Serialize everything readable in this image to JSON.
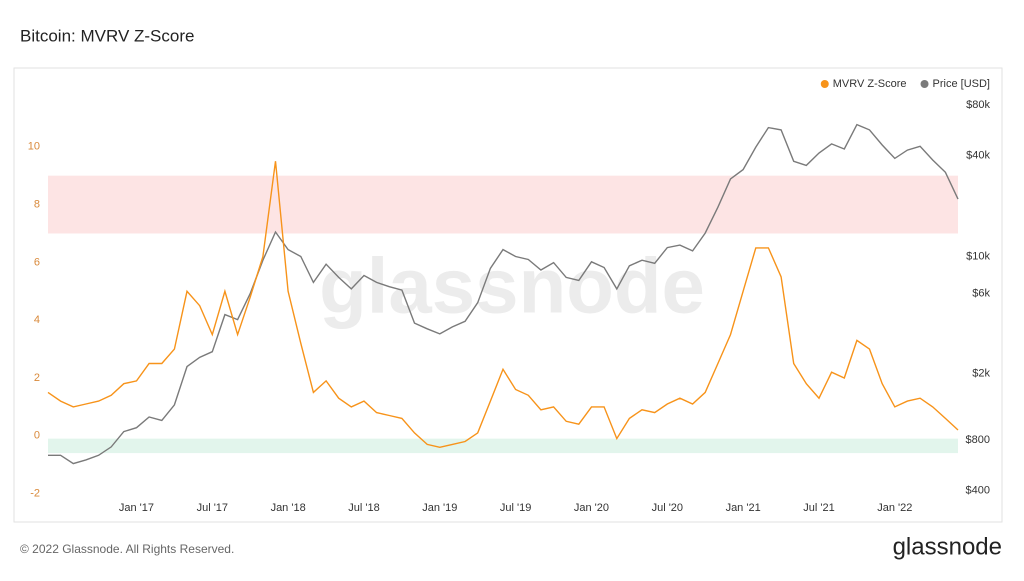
{
  "chart_data": {
    "type": "line",
    "title": "Bitcoin: MVRV Z-Score",
    "watermark": "glassnode",
    "x": [
      "2016-06",
      "2016-07",
      "2016-08",
      "2016-09",
      "2016-10",
      "2016-11",
      "2016-12",
      "2017-01",
      "2017-02",
      "2017-03",
      "2017-04",
      "2017-05",
      "2017-06",
      "2017-07",
      "2017-08",
      "2017-09",
      "2017-10",
      "2017-11",
      "2017-12",
      "2018-01",
      "2018-02",
      "2018-03",
      "2018-04",
      "2018-05",
      "2018-06",
      "2018-07",
      "2018-08",
      "2018-09",
      "2018-10",
      "2018-11",
      "2018-12",
      "2019-01",
      "2019-02",
      "2019-03",
      "2019-04",
      "2019-05",
      "2019-06",
      "2019-07",
      "2019-08",
      "2019-09",
      "2019-10",
      "2019-11",
      "2019-12",
      "2020-01",
      "2020-02",
      "2020-03",
      "2020-04",
      "2020-05",
      "2020-06",
      "2020-07",
      "2020-08",
      "2020-09",
      "2020-10",
      "2020-11",
      "2020-12",
      "2021-01",
      "2021-02",
      "2021-03",
      "2021-04",
      "2021-05",
      "2021-06",
      "2021-07",
      "2021-08",
      "2021-09",
      "2021-10",
      "2021-11",
      "2021-12",
      "2022-01",
      "2022-02",
      "2022-03",
      "2022-04",
      "2022-05",
      "2022-06"
    ],
    "xlim": [
      "2016-06",
      "2022-06"
    ],
    "xticks": [
      {
        "value": "2017-01",
        "label": "Jan '17"
      },
      {
        "value": "2017-07",
        "label": "Jul '17"
      },
      {
        "value": "2018-01",
        "label": "Jan '18"
      },
      {
        "value": "2018-07",
        "label": "Jul '18"
      },
      {
        "value": "2019-01",
        "label": "Jan '19"
      },
      {
        "value": "2019-07",
        "label": "Jul '19"
      },
      {
        "value": "2020-01",
        "label": "Jan '20"
      },
      {
        "value": "2020-07",
        "label": "Jul '20"
      },
      {
        "value": "2021-01",
        "label": "Jan '21"
      },
      {
        "value": "2021-07",
        "label": "Jul '21"
      },
      {
        "value": "2022-01",
        "label": "Jan '22"
      }
    ],
    "ylim": [
      -2.5,
      12
    ],
    "yticks": [
      -2,
      0,
      2,
      4,
      6,
      8,
      10
    ],
    "y2lim": [
      315,
      100000
    ],
    "y2scale": "log",
    "y2ticks": [
      {
        "value": 400,
        "label": "$400"
      },
      {
        "value": 800,
        "label": "$800"
      },
      {
        "value": 2000,
        "label": "$2k"
      },
      {
        "value": 6000,
        "label": "$6k"
      },
      {
        "value": 10000,
        "label": "$10k"
      },
      {
        "value": 40000,
        "label": "$40k"
      },
      {
        "value": 80000,
        "label": "$80k"
      }
    ],
    "bands": [
      {
        "from": 7,
        "to": 9,
        "color": "#fde4e4"
      },
      {
        "from": -0.6,
        "to": -0.1,
        "color": "#e2f5ec"
      }
    ],
    "legend": "top-right",
    "series": [
      {
        "name": "MVRV Z-Score",
        "color": "#f7931a",
        "axis": "y",
        "values": [
          1.5,
          1.2,
          1.0,
          1.1,
          1.2,
          1.4,
          1.8,
          1.9,
          2.5,
          2.5,
          3.0,
          5.0,
          4.5,
          3.5,
          5.0,
          3.5,
          4.8,
          6.2,
          9.5,
          5.0,
          3.2,
          1.5,
          1.9,
          1.3,
          1.0,
          1.2,
          0.8,
          0.7,
          0.6,
          0.1,
          -0.3,
          -0.4,
          -0.3,
          -0.2,
          0.1,
          1.2,
          2.3,
          1.6,
          1.4,
          0.9,
          1.0,
          0.5,
          0.4,
          1.0,
          1.0,
          -0.1,
          0.6,
          0.9,
          0.8,
          1.1,
          1.3,
          1.1,
          1.5,
          2.5,
          3.5,
          5.0,
          6.5,
          6.5,
          5.5,
          2.5,
          1.8,
          1.3,
          2.2,
          2.0,
          3.3,
          3.0,
          1.8,
          1.0,
          1.2,
          1.3,
          1.0,
          0.6,
          0.2
        ]
      },
      {
        "name": "Price [USD]",
        "color": "#7a7a7a",
        "axis": "y2",
        "values": [
          650,
          650,
          580,
          610,
          650,
          730,
          900,
          950,
          1100,
          1050,
          1300,
          2200,
          2500,
          2700,
          4500,
          4200,
          6000,
          9500,
          14000,
          11000,
          10000,
          7000,
          9000,
          7500,
          6400,
          7700,
          7000,
          6600,
          6300,
          4000,
          3700,
          3450,
          3800,
          4100,
          5300,
          8500,
          11000,
          10000,
          9600,
          8300,
          9200,
          7500,
          7200,
          9300,
          8600,
          6400,
          8800,
          9500,
          9100,
          11300,
          11700,
          10800,
          13800,
          19700,
          29000,
          33000,
          45000,
          58800,
          57000,
          37000,
          35000,
          41500,
          47000,
          43800,
          61300,
          57000,
          46300,
          38500,
          43200,
          45500,
          37700,
          31800,
          22000
        ]
      }
    ]
  },
  "footer": {
    "copyright": "© 2022 Glassnode. All Rights Reserved.",
    "logo": "glassnode"
  }
}
